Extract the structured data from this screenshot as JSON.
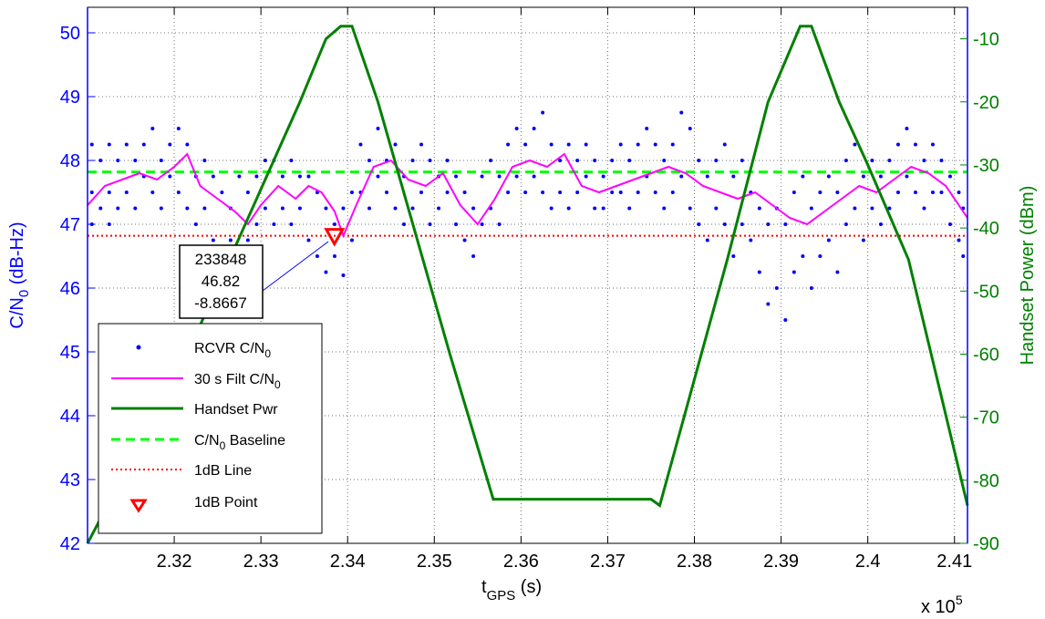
{
  "chart_data": {
    "type": "line",
    "xlabel_main": "t",
    "xlabel_sub": "GPS",
    "xlabel_unit": " (s)",
    "x_multiplier": "x 10",
    "x_multiplier_exp": "5",
    "ylabel_left_main": "C/N",
    "ylabel_left_sub": "0",
    "ylabel_left_unit": " (dB-Hz)",
    "ylabel_right": "Handset Power (dBm)",
    "xlim": [
      2.31,
      2.4115
    ],
    "ylim_left": [
      42,
      50.4
    ],
    "ylim_right": [
      -90,
      -5
    ],
    "grid": true,
    "x_ticks": [
      2.32,
      2.33,
      2.34,
      2.35,
      2.36,
      2.37,
      2.38,
      2.39,
      2.4,
      2.41
    ],
    "x_tick_labels": [
      "2.32",
      "2.33",
      "2.34",
      "2.35",
      "2.36",
      "2.37",
      "2.38",
      "2.39",
      "2.4",
      "2.41"
    ],
    "y_left_ticks": [
      42,
      43,
      44,
      45,
      46,
      47,
      48,
      49,
      50
    ],
    "y_left_tick_labels": [
      "42",
      "43",
      "44",
      "45",
      "46",
      "47",
      "48",
      "49",
      "50"
    ],
    "y_right_ticks": [
      -90,
      -80,
      -70,
      -60,
      -50,
      -40,
      -30,
      -20,
      -10
    ],
    "y_right_tick_labels": [
      "-90",
      "-80",
      "-70",
      "-60",
      "-50",
      "-40",
      "-30",
      "-20",
      "-10"
    ],
    "colors": {
      "left_axis": "#0000ff",
      "right_axis": "#008000",
      "rcvr": "#0000ff",
      "filt": "#ff00ff",
      "handset": "#008000",
      "baseline": "#00ff00",
      "line1db": "#ff0000",
      "point1db": "#ff0000"
    },
    "legend_position": "lower-left",
    "legend": [
      {
        "label": "RCVR C/N",
        "sub": "0"
      },
      {
        "label": "30 s Filt C/N",
        "sub": "0"
      },
      {
        "label": "Handset Pwr",
        "sub": ""
      },
      {
        "label": "C/N",
        "sub": "0",
        "suffix": " Baseline"
      },
      {
        "label": "1dB Line",
        "sub": ""
      },
      {
        "label": "1dB Point",
        "sub": ""
      }
    ],
    "baseline_cn0": 47.82,
    "line_1db_cn0": 46.82,
    "handset_power": {
      "x": [
        2.31,
        2.3215,
        2.3345,
        2.3375,
        2.3392,
        2.3405,
        2.3435,
        2.3518,
        2.3568,
        2.37,
        2.375,
        2.376,
        2.3838,
        2.3885,
        2.3922,
        2.3935,
        2.3967,
        2.4,
        2.4047,
        2.4115
      ],
      "y": [
        -90,
        -60,
        -20,
        -10,
        -8,
        -8,
        -20,
        -60,
        -83,
        -83,
        -83,
        -84,
        -45,
        -20,
        -8,
        -8,
        -20,
        -30,
        -45,
        -84
      ]
    },
    "filtered_cn0": {
      "x": [
        2.31,
        2.312,
        2.314,
        2.316,
        2.318,
        2.32,
        2.3215,
        2.323,
        2.325,
        2.327,
        2.3285,
        2.33,
        2.332,
        2.334,
        2.3355,
        2.337,
        2.3385,
        2.3395,
        2.341,
        2.343,
        2.345,
        2.347,
        2.349,
        2.351,
        2.353,
        2.355,
        2.357,
        2.359,
        2.361,
        2.363,
        2.365,
        2.367,
        2.369,
        2.371,
        2.373,
        2.375,
        2.377,
        2.379,
        2.381,
        2.383,
        2.385,
        2.387,
        2.389,
        2.391,
        2.393,
        2.395,
        2.397,
        2.399,
        2.401,
        2.403,
        2.405,
        2.407,
        2.409,
        2.411,
        2.4115
      ],
      "y": [
        47.3,
        47.6,
        47.7,
        47.8,
        47.7,
        47.9,
        48.1,
        47.6,
        47.4,
        47.2,
        47.0,
        47.3,
        47.6,
        47.4,
        47.6,
        47.5,
        47.2,
        46.82,
        47.3,
        47.9,
        48.0,
        47.7,
        47.6,
        47.8,
        47.3,
        47.0,
        47.4,
        47.9,
        48.0,
        47.9,
        48.1,
        47.6,
        47.5,
        47.6,
        47.7,
        47.8,
        47.9,
        47.8,
        47.6,
        47.5,
        47.4,
        47.5,
        47.3,
        47.1,
        47.0,
        47.2,
        47.4,
        47.6,
        47.5,
        47.7,
        47.9,
        47.8,
        47.6,
        47.2,
        47.1
      ]
    },
    "rcvr_cn0": {
      "x": [
        2.3105,
        2.3105,
        2.3105,
        2.3115,
        2.3115,
        2.3125,
        2.3125,
        2.3125,
        2.3135,
        2.3135,
        2.3145,
        2.3145,
        2.3155,
        2.3155,
        2.3165,
        2.3165,
        2.3175,
        2.3175,
        2.3185,
        2.3185,
        2.3195,
        2.3195,
        2.3205,
        2.3205,
        2.3215,
        2.3215,
        2.3225,
        2.3225,
        2.3235,
        2.3235,
        2.3245,
        2.3245,
        2.3255,
        2.3255,
        2.3265,
        2.3265,
        2.3275,
        2.3275,
        2.3285,
        2.3285,
        2.3295,
        2.3295,
        2.3305,
        2.3305,
        2.3315,
        2.3315,
        2.3325,
        2.3325,
        2.3335,
        2.3335,
        2.3345,
        2.3345,
        2.3355,
        2.3355,
        2.3365,
        2.3365,
        2.3375,
        2.3375,
        2.3385,
        2.3385,
        2.3395,
        2.3395,
        2.3405,
        2.3405,
        2.3415,
        2.3415,
        2.3425,
        2.3425,
        2.3435,
        2.3435,
        2.3445,
        2.3445,
        2.3455,
        2.3455,
        2.3465,
        2.3465,
        2.3475,
        2.3475,
        2.3485,
        2.3485,
        2.3495,
        2.3495,
        2.3505,
        2.3505,
        2.3515,
        2.3515,
        2.3525,
        2.3525,
        2.3535,
        2.3535,
        2.3545,
        2.3545,
        2.3555,
        2.3555,
        2.3565,
        2.3565,
        2.3575,
        2.3575,
        2.3585,
        2.3585,
        2.3595,
        2.3595,
        2.3605,
        2.3605,
        2.3615,
        2.3615,
        2.3625,
        2.3625,
        2.3635,
        2.3635,
        2.3645,
        2.3645,
        2.3655,
        2.3655,
        2.3665,
        2.3665,
        2.3675,
        2.3675,
        2.3685,
        2.3685,
        2.3695,
        2.3695,
        2.3705,
        2.3705,
        2.3715,
        2.3715,
        2.3725,
        2.3725,
        2.3735,
        2.3735,
        2.3745,
        2.3745,
        2.3755,
        2.3755,
        2.3765,
        2.3765,
        2.3775,
        2.3775,
        2.3785,
        2.3785,
        2.3795,
        2.3795,
        2.3805,
        2.3805,
        2.3815,
        2.3815,
        2.3825,
        2.3825,
        2.3835,
        2.3835,
        2.3845,
        2.3845,
        2.3855,
        2.3855,
        2.3865,
        2.3865,
        2.3875,
        2.3875,
        2.3885,
        2.3885,
        2.3895,
        2.3895,
        2.3905,
        2.3905,
        2.3915,
        2.3915,
        2.3925,
        2.3925,
        2.3935,
        2.3935,
        2.3945,
        2.3945,
        2.3955,
        2.3955,
        2.3965,
        2.3965,
        2.3975,
        2.3975,
        2.3985,
        2.3985,
        2.3995,
        2.3995,
        2.4005,
        2.4005,
        2.4015,
        2.4015,
        2.4025,
        2.4025,
        2.4035,
        2.4035,
        2.4045,
        2.4045,
        2.4055,
        2.4055,
        2.4065,
        2.4065,
        2.4075,
        2.4075,
        2.4085,
        2.4085,
        2.4095,
        2.4095,
        2.4105,
        2.4105,
        2.411,
        2.411
      ],
      "y": [
        48.25,
        47.0,
        47.5,
        48.0,
        47.25,
        48.25,
        47.5,
        47.0,
        48.0,
        47.25,
        48.25,
        47.5,
        48.0,
        47.25,
        48.25,
        47.75,
        48.5,
        47.5,
        48.0,
        47.25,
        48.25,
        47.75,
        48.5,
        47.5,
        48.25,
        47.25,
        47.75,
        47.0,
        48.0,
        47.25,
        47.75,
        46.75,
        47.5,
        46.5,
        47.25,
        46.75,
        47.75,
        46.5,
        47.5,
        46.75,
        47.75,
        47.0,
        48.0,
        47.25,
        48.0,
        47.0,
        47.75,
        47.25,
        48.0,
        47.0,
        47.75,
        47.25,
        47.75,
        46.75,
        47.5,
        46.5,
        47.25,
        46.25,
        47.0,
        46.5,
        47.25,
        46.2,
        47.5,
        46.75,
        48.25,
        47.5,
        48.0,
        47.25,
        48.5,
        47.75,
        48.0,
        47.5,
        48.25,
        47.25,
        47.75,
        47.0,
        48.0,
        47.25,
        48.25,
        47.5,
        48.0,
        47.0,
        47.75,
        47.25,
        48.0,
        47.5,
        47.75,
        47.0,
        47.5,
        46.75,
        47.25,
        46.5,
        47.75,
        47.0,
        48.0,
        47.25,
        47.75,
        47.0,
        48.25,
        47.5,
        48.5,
        47.75,
        48.25,
        47.5,
        48.5,
        47.75,
        48.75,
        47.5,
        48.25,
        47.25,
        48.0,
        47.5,
        48.25,
        47.25,
        48.0,
        47.5,
        48.25,
        47.75,
        48.0,
        47.25,
        47.75,
        47.25,
        48.0,
        47.5,
        48.25,
        47.5,
        48.0,
        47.25,
        48.25,
        47.5,
        48.5,
        47.75,
        48.25,
        47.5,
        48.0,
        47.25,
        48.25,
        47.5,
        48.75,
        47.75,
        48.5,
        47.25,
        48.0,
        47.0,
        47.75,
        46.75,
        48.0,
        47.25,
        48.25,
        47.0,
        47.75,
        46.5,
        48.0,
        47.0,
        47.5,
        46.75,
        47.25,
        46.25,
        47.0,
        45.75,
        47.25,
        46.0,
        47.0,
        45.5,
        47.5,
        46.25,
        47.75,
        46.5,
        47.25,
        46.0,
        47.5,
        46.5,
        47.75,
        46.75,
        47.5,
        46.25,
        48.0,
        47.0,
        48.25,
        47.25,
        47.75,
        46.75,
        48.0,
        47.25,
        47.75,
        47.0,
        48.0,
        47.25,
        48.25,
        47.5,
        48.5,
        47.75,
        48.25,
        47.5,
        48.0,
        47.25,
        48.25,
        47.5,
        48.0,
        47.5,
        47.75,
        47.0,
        47.5,
        46.75,
        47.25,
        46.5
      ]
    },
    "point_1db": {
      "x": 2.33848,
      "y": 46.82
    },
    "datatip": {
      "lines": [
        "233848",
        "46.82",
        "-8.8667"
      ]
    }
  }
}
